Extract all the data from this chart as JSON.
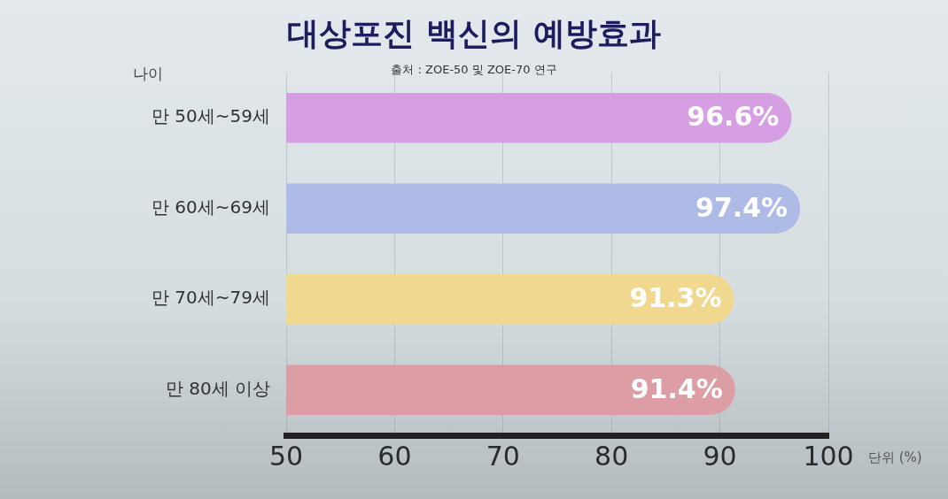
{
  "chart_data": {
    "type": "bar",
    "orientation": "horizontal",
    "title": "대상포진 백신의 예방효과",
    "annotations": [
      "출처 : ZOE-50 및 ZOE-70 연구"
    ],
    "ylabel": "나이",
    "xlabel": "단위 (%)",
    "categories": [
      "만 50세~59세",
      "만 60세~69세",
      "만 70세~79세",
      "만 80세 이상"
    ],
    "values": [
      96.6,
      97.4,
      91.3,
      91.4
    ],
    "colors": [
      "#d69fe3",
      "#aebbe6",
      "#f1d88f",
      "#dc9ea4"
    ],
    "value_labels": [
      "96.6%",
      "97.4%",
      "91.3%",
      "91.4%"
    ],
    "xlim": [
      50,
      100
    ],
    "xticks": [
      50,
      60,
      70,
      80,
      90,
      100
    ],
    "grid": "x"
  }
}
